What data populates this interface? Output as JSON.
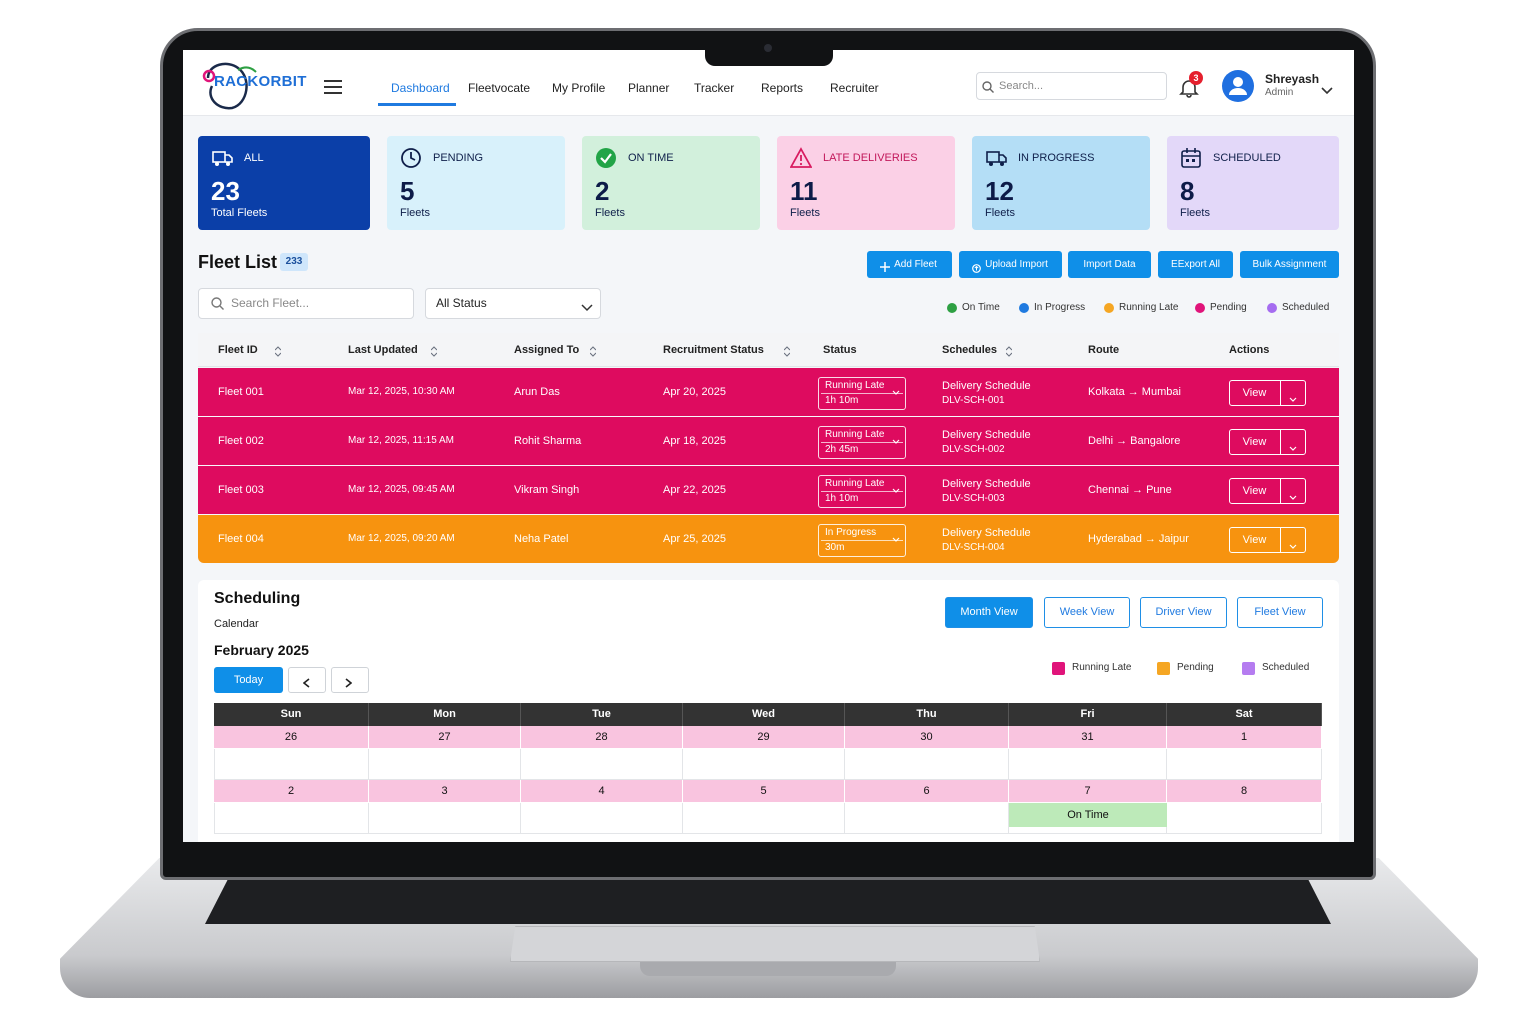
{
  "header": {
    "logo": "RACKORBIT",
    "nav": [
      "Dashboard",
      "Fleetvocate",
      "My Profile",
      "Planner",
      "Tracker",
      "Reports",
      "Recruiter"
    ],
    "search_placeholder": "Search...",
    "notifications": 3,
    "user": {
      "name": "Shreyash",
      "role": "Admin"
    }
  },
  "cards": [
    {
      "label": "ALL",
      "count": 23,
      "caption": "Total Fleets",
      "color": "#0b3fa8"
    },
    {
      "label": "PENDING",
      "count": 5,
      "caption": "Fleets",
      "color": "#d8f1fb"
    },
    {
      "label": "ON TIME",
      "count": 2,
      "caption": "Fleets",
      "color": "#d2f0dc"
    },
    {
      "label": "LATE DELIVERIES",
      "count": 11,
      "caption": "Fleets",
      "color": "#fbd0e6"
    },
    {
      "label": "IN PROGRESS",
      "count": 12,
      "caption": "Fleets",
      "color": "#b4def6"
    },
    {
      "label": "SCHEDULED",
      "count": 8,
      "caption": "Fleets",
      "color": "#e3d8f9"
    }
  ],
  "fleet_list": {
    "title": "Fleet List",
    "count": 233,
    "buttons": [
      "Add Fleet",
      "Upload Import",
      "Import Data",
      "EExport All",
      "Bulk Assignment"
    ],
    "search_placeholder": "Search Fleet...",
    "status_filter": "All Status",
    "legend": [
      {
        "label": "On Time",
        "color": "#2ea043"
      },
      {
        "label": "In Progress",
        "color": "#1f7ae0"
      },
      {
        "label": "Running Late",
        "color": "#f5a623"
      },
      {
        "label": "Pending",
        "color": "#e0147a"
      },
      {
        "label": "Scheduled",
        "color": "#a56cf0"
      }
    ],
    "columns": [
      {
        "label": "Fleet ID",
        "sortable": true
      },
      {
        "label": "Last Updated",
        "sortable": true
      },
      {
        "label": "Assigned To",
        "sortable": true
      },
      {
        "label": "Recruitment Status",
        "sortable": true
      },
      {
        "label": "Status",
        "sortable": false
      },
      {
        "label": "Schedules",
        "sortable": true
      },
      {
        "label": "Route",
        "sortable": false
      },
      {
        "label": "Actions",
        "sortable": false
      }
    ],
    "rows": [
      {
        "id": "Fleet 001",
        "updated": "Mar 12, 2025, 10:30 AM",
        "assigned": "Arun Das",
        "recruitment": "Apr 20, 2025",
        "status": "Running Late",
        "duration": "1h 10m",
        "schedule": "Delivery Schedule",
        "schedule_id": "DLV-SCH-001",
        "route": "Kolkata → Mumbai",
        "action": "View",
        "color": "#de0b5f"
      },
      {
        "id": "Fleet 002",
        "updated": "Mar 12, 2025, 11:15 AM",
        "assigned": "Rohit Sharma",
        "recruitment": "Apr 18, 2025",
        "status": "Running Late",
        "duration": "2h 45m",
        "schedule": "Delivery Schedule",
        "schedule_id": "DLV-SCH-002",
        "route": "Delhi → Bangalore",
        "action": "View",
        "color": "#de0b5f"
      },
      {
        "id": "Fleet 003",
        "updated": "Mar 12, 2025, 09:45 AM",
        "assigned": "Vikram Singh",
        "recruitment": "Apr 22, 2025",
        "status": "Running Late",
        "duration": "1h 10m",
        "schedule": "Delivery Schedule",
        "schedule_id": "DLV-SCH-003",
        "route": "Chennai → Pune",
        "action": "View",
        "color": "#de0b5f"
      },
      {
        "id": "Fleet 004",
        "updated": "Mar 12, 2025, 09:20 AM",
        "assigned": "Neha Patel",
        "recruitment": "Apr 25, 2025",
        "status": "In Progress",
        "duration": "30m",
        "schedule": "Delivery Schedule",
        "schedule_id": "DLV-SCH-004",
        "route": "Hyderabad → Jaipur",
        "action": "View",
        "color": "#f7930f"
      }
    ]
  },
  "scheduling": {
    "title": "Scheduling",
    "subtitle": "Calendar",
    "month": "February 2025",
    "views": [
      "Month View",
      "Week View",
      "Driver View",
      "Fleet View"
    ],
    "today": "Today",
    "legend": [
      {
        "label": "Running Late",
        "color": "#e0147a"
      },
      {
        "label": "Pending",
        "color": "#f5a623"
      },
      {
        "label": "Scheduled",
        "color": "#b57cf0"
      }
    ],
    "weekdays": [
      "Sun",
      "Mon",
      "Tue",
      "Wed",
      "Thu",
      "Fri",
      "Sat"
    ],
    "weeks": [
      [
        {
          "day": 26
        },
        {
          "day": 27
        },
        {
          "day": 28
        },
        {
          "day": 29
        },
        {
          "day": 30
        },
        {
          "day": 31
        },
        {
          "day": 1
        }
      ],
      [
        {
          "day": 2
        },
        {
          "day": 3
        },
        {
          "day": 4
        },
        {
          "day": 5
        },
        {
          "day": 6
        },
        {
          "day": 7,
          "event": "On Time"
        },
        {
          "day": 8
        }
      ]
    ]
  }
}
